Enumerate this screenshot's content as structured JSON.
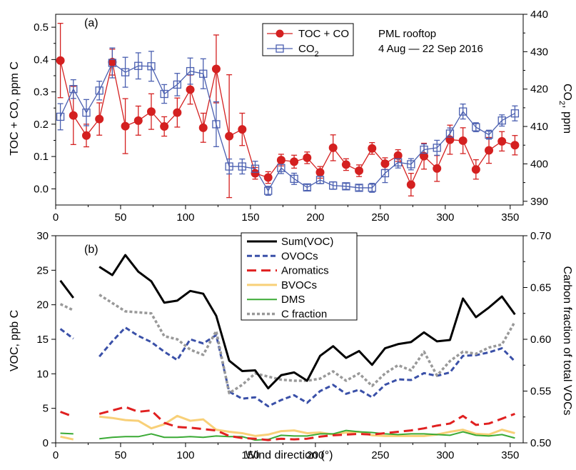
{
  "chart_data": [
    {
      "type": "line",
      "panel_label": "(a)",
      "annotation": [
        "PML rooftop",
        "4 Aug — 22 Sep 2016"
      ],
      "ylabel": "TOC + CO, ppm C",
      "y2label_main": "CO",
      "y2label_sub": "2",
      "y2label_tail": ", ppm",
      "xlim": [
        0,
        360
      ],
      "ylim": [
        -0.05,
        0.54
      ],
      "y2lim": [
        389,
        440
      ],
      "x_ticks": [
        "0",
        "50",
        "100",
        "150",
        "200",
        "250",
        "300",
        "350"
      ],
      "y_ticks": [
        "0.0",
        "0.1",
        "0.2",
        "0.3",
        "0.4",
        "0.5"
      ],
      "y2_ticks": [
        "390",
        "400",
        "410",
        "420",
        "430",
        "440"
      ],
      "legend": [
        {
          "label": "TOC + CO",
          "sub": "",
          "color": "#d42020",
          "marker": "filled-circle"
        },
        {
          "label": "CO",
          "sub": "2",
          "color": "#4a5fb0",
          "marker": "open-square"
        }
      ],
      "x": [
        5,
        15,
        25,
        35,
        45,
        55,
        65,
        75,
        85,
        95,
        105,
        115,
        125,
        135,
        145,
        155,
        165,
        175,
        185,
        195,
        205,
        215,
        225,
        235,
        245,
        255,
        265,
        275,
        285,
        295,
        305,
        315,
        325,
        335,
        345,
        355
      ],
      "series": [
        {
          "name": "TOC + CO",
          "axis": "left",
          "color": "#d42020",
          "values": [
            0.397,
            0.227,
            0.165,
            0.216,
            0.392,
            0.194,
            0.211,
            0.239,
            0.193,
            0.236,
            0.307,
            0.189,
            0.371,
            0.163,
            0.184,
            0.048,
            0.035,
            0.089,
            0.084,
            0.096,
            0.051,
            0.127,
            0.075,
            0.056,
            0.125,
            0.078,
            0.103,
            0.013,
            0.101,
            0.063,
            0.152,
            0.149,
            0.06,
            0.119,
            0.147,
            0.135
          ],
          "err": [
            0.115,
            0.09,
            0.035,
            0.05,
            0.04,
            0.085,
            0.045,
            0.055,
            0.03,
            0.045,
            0.045,
            0.045,
            0.105,
            0.19,
            0.05,
            0.018,
            0.018,
            0.018,
            0.02,
            0.018,
            0.018,
            0.04,
            0.018,
            0.018,
            0.018,
            0.018,
            0.018,
            0.035,
            0.04,
            0.04,
            0.045,
            0.04,
            0.03,
            0.04,
            0.03,
            0.03
          ]
        },
        {
          "name": "CO2",
          "axis": "right",
          "color": "#4a5fb0",
          "values": [
            412.6,
            420.0,
            413.7,
            419.6,
            427.0,
            424.5,
            426.2,
            426.1,
            418.7,
            421.2,
            424.8,
            424.1,
            410.6,
            399.3,
            399.3,
            398.7,
            392.8,
            398.9,
            396.0,
            393.7,
            395.7,
            394.2,
            394.0,
            393.6,
            393.6,
            397.5,
            400.4,
            399.9,
            403.8,
            404.3,
            408.1,
            414.0,
            409.8,
            407.8,
            411.6,
            413.5
          ],
          "err": [
            3.5,
            2.5,
            3.5,
            2.5,
            4.0,
            4.0,
            3.5,
            4.0,
            2.5,
            3.0,
            3.5,
            4.0,
            6.0,
            2.0,
            2.0,
            2.0,
            1.2,
            1.5,
            1.5,
            0.8,
            1.0,
            1.0,
            0.8,
            0.8,
            1.2,
            2.5,
            1.5,
            1.5,
            1.5,
            2.0,
            1.5,
            2.0,
            1.2,
            1.2,
            1.5,
            2.0
          ]
        }
      ]
    },
    {
      "type": "line",
      "panel_label": "(b)",
      "xlabel": "Wind direction (°)",
      "ylabel": "VOC, ppb C",
      "y2label": "Carbon fraction of total VOCs",
      "xlim": [
        0,
        360
      ],
      "ylim": [
        0,
        30
      ],
      "y2lim": [
        0.5,
        0.7
      ],
      "x_ticks": [
        "0",
        "50",
        "100",
        "150",
        "200",
        "250",
        "300",
        "350"
      ],
      "y_ticks": [
        "0",
        "5",
        "10",
        "15",
        "20",
        "25",
        "30"
      ],
      "y2_ticks": [
        "0.50",
        "0.55",
        "0.60",
        "0.65",
        "0.70"
      ],
      "x": [
        5,
        15,
        25,
        35,
        45,
        55,
        65,
        75,
        85,
        95,
        105,
        115,
        125,
        135,
        145,
        155,
        165,
        175,
        185,
        195,
        205,
        215,
        225,
        235,
        245,
        255,
        265,
        275,
        285,
        295,
        305,
        315,
        325,
        335,
        345,
        355
      ],
      "series": [
        {
          "name": "Sum(VOC)",
          "axis": "left",
          "color": "#000000",
          "style": "solid",
          "width": 3,
          "values": [
            23.5,
            21.0,
            null,
            25.5,
            24.3,
            27.2,
            24.8,
            23.4,
            20.3,
            20.6,
            22.0,
            21.6,
            18.4,
            11.9,
            10.4,
            10.5,
            7.9,
            9.8,
            10.2,
            9.0,
            12.6,
            14.0,
            12.3,
            13.3,
            11.3,
            13.7,
            14.3,
            14.6,
            16.0,
            14.7,
            14.9,
            20.9,
            18.2,
            19.6,
            21.2,
            18.6
          ]
        },
        {
          "name": "OVOCs",
          "axis": "left",
          "color": "#3a50a8",
          "style": "dash",
          "width": 3,
          "values": [
            16.5,
            15.1,
            null,
            12.5,
            14.7,
            16.7,
            15.5,
            14.6,
            13.2,
            12.0,
            15.0,
            14.4,
            15.6,
            7.4,
            6.4,
            6.6,
            5.3,
            6.2,
            6.9,
            5.8,
            7.5,
            8.4,
            7.1,
            7.7,
            6.6,
            8.4,
            9.2,
            9.1,
            10.1,
            9.7,
            10.2,
            12.6,
            12.7,
            13.1,
            13.7,
            11.8
          ]
        },
        {
          "name": "Aromatics",
          "axis": "left",
          "color": "#e02020",
          "style": "longdash",
          "width": 3,
          "values": [
            4.5,
            3.8,
            null,
            4.2,
            4.7,
            5.2,
            4.5,
            4.7,
            2.9,
            2.3,
            2.2,
            2.0,
            1.8,
            1.0,
            0.7,
            0.6,
            0.4,
            0.6,
            0.5,
            0.6,
            0.9,
            1.1,
            1.2,
            1.3,
            1.2,
            1.4,
            1.6,
            1.8,
            2.1,
            2.5,
            2.8,
            3.9,
            2.6,
            2.8,
            3.5,
            4.2
          ]
        },
        {
          "name": "BVOCs",
          "axis": "left",
          "color": "#f8d078",
          "style": "solid",
          "width": 3,
          "values": [
            0.9,
            0.5,
            null,
            3.8,
            3.6,
            3.3,
            3.2,
            2.1,
            2.7,
            3.9,
            3.2,
            3.4,
            1.9,
            1.6,
            1.4,
            1.0,
            1.2,
            1.7,
            1.8,
            1.4,
            1.5,
            1.2,
            1.5,
            1.6,
            1.1,
            1.0,
            1.0,
            1.0,
            1.0,
            1.2,
            1.6,
            1.9,
            1.3,
            1.2,
            1.9,
            1.4
          ]
        },
        {
          "name": "DMS",
          "axis": "left",
          "color": "#3aaa35",
          "style": "solid",
          "width": 2,
          "values": [
            1.4,
            1.3,
            null,
            0.6,
            0.8,
            0.9,
            0.9,
            1.3,
            0.8,
            0.8,
            0.9,
            0.8,
            1.0,
            0.9,
            0.9,
            0.4,
            0.5,
            1.1,
            1.0,
            1.0,
            1.3,
            1.3,
            1.8,
            1.6,
            1.5,
            1.3,
            1.2,
            1.3,
            1.3,
            1.2,
            1.1,
            1.6,
            1.1,
            1.0,
            1.2,
            0.7
          ]
        },
        {
          "name": "C fraction",
          "axis": "right",
          "color": "#999999",
          "style": "dot",
          "width": 3.5,
          "values": [
            0.634,
            0.628,
            null,
            0.643,
            0.635,
            0.627,
            0.626,
            0.625,
            0.603,
            0.6,
            0.59,
            0.585,
            0.608,
            0.548,
            0.556,
            0.567,
            0.564,
            0.561,
            0.56,
            0.56,
            0.562,
            0.569,
            0.56,
            0.567,
            0.555,
            0.567,
            0.575,
            0.57,
            0.588,
            0.565,
            0.579,
            0.588,
            0.586,
            0.592,
            0.595,
            0.617
          ]
        }
      ]
    }
  ]
}
